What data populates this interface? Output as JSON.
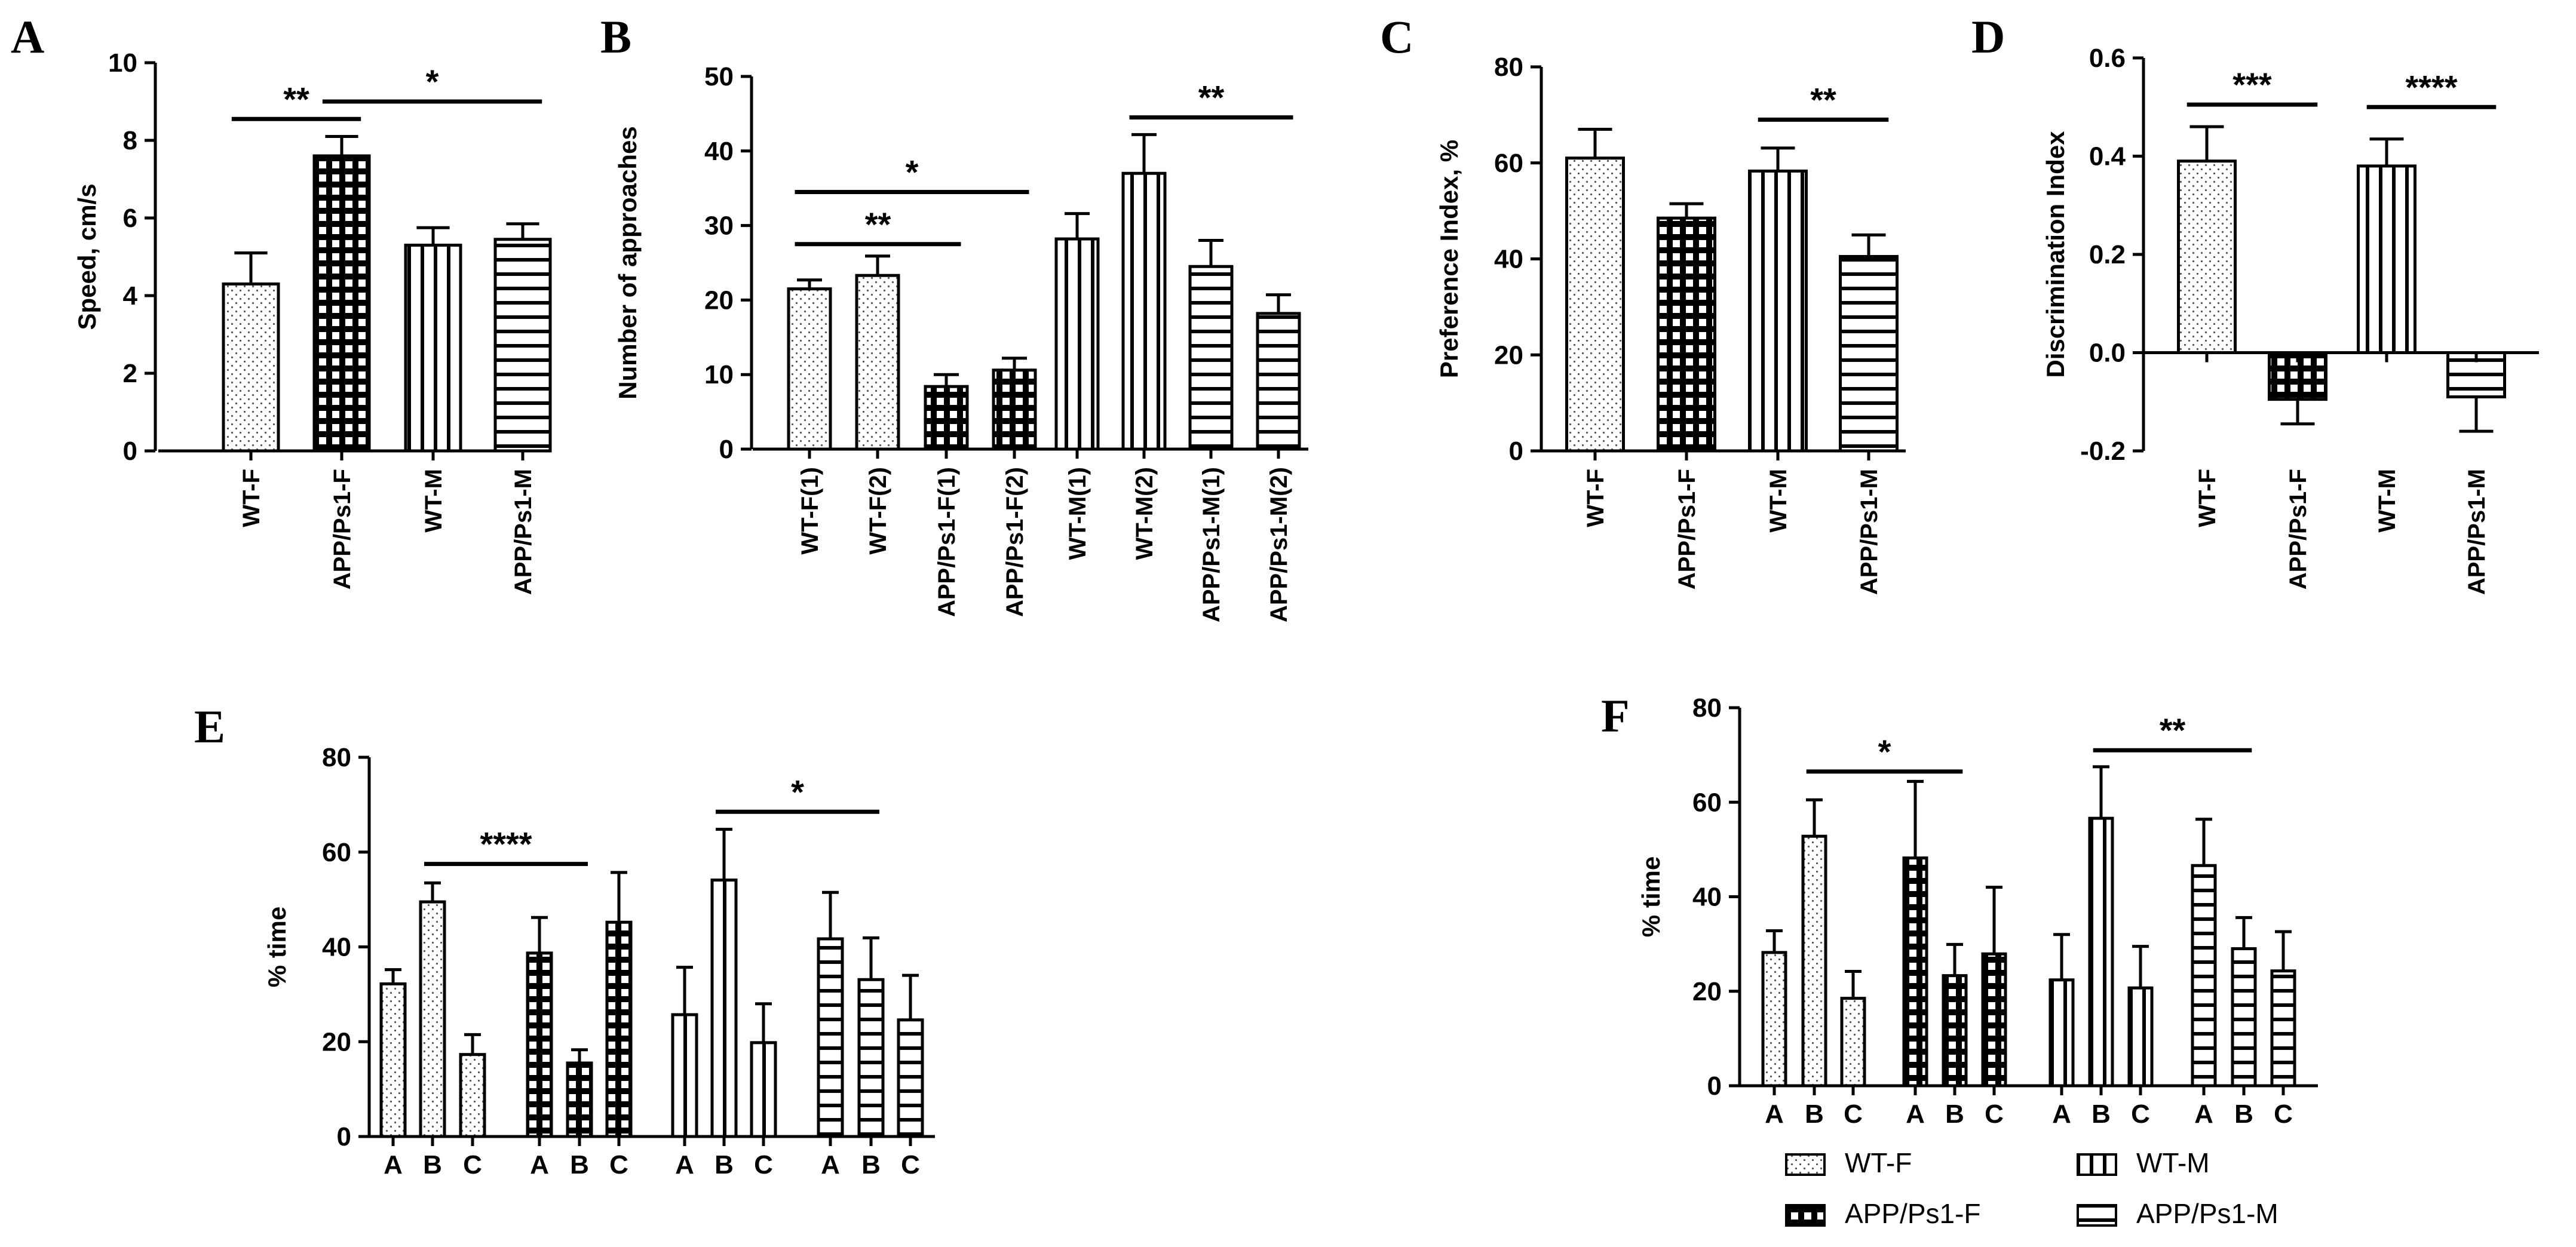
{
  "chart_data": [
    {
      "id": "A",
      "type": "bar",
      "panel_label": "A",
      "ylabel": "Speed, cm/s",
      "ylim": [
        0,
        10
      ],
      "yticks": [
        0,
        2,
        4,
        6,
        8,
        10
      ],
      "categories": [
        "WT-F",
        "APP/Ps1-F",
        "WT-M",
        "APP/Ps1-M"
      ],
      "values": [
        4.3,
        7.6,
        5.3,
        5.45
      ],
      "errors": [
        0.8,
        0.5,
        0.45,
        0.4
      ],
      "patterns": [
        "dots",
        "grid",
        "vert",
        "horiz"
      ],
      "significance": [
        {
          "from": 0,
          "to": 1,
          "label": "**",
          "y": 8.55
        },
        {
          "from": 1,
          "to": 3,
          "label": "*",
          "y": 9.0
        }
      ]
    },
    {
      "id": "B",
      "type": "bar",
      "panel_label": "B",
      "ylabel": "Number of approaches",
      "ylim": [
        0,
        50
      ],
      "yticks": [
        0,
        10,
        20,
        30,
        40,
        50
      ],
      "categories": [
        "WT-F(1)",
        "WT-F(2)",
        "APP/Ps1-F(1)",
        "APP/Ps1-F(2)",
        "WT-M(1)",
        "WT-M(2)",
        "APP/Ps1-M(1)",
        "APP/Ps1-M(2)"
      ],
      "values": [
        21.5,
        23.3,
        8.4,
        10.6,
        28.2,
        37.0,
        24.5,
        18.2
      ],
      "errors": [
        1.2,
        2.6,
        1.6,
        1.6,
        3.4,
        5.2,
        3.5,
        2.5
      ],
      "patterns": [
        "dots",
        "dots",
        "grid",
        "grid",
        "vert",
        "vert",
        "horiz",
        "horiz"
      ],
      "significance": [
        {
          "from": 0,
          "to": 2,
          "label": "**",
          "y": 27.5
        },
        {
          "from": 0,
          "to": 3,
          "label": "*",
          "y": 34.5
        },
        {
          "from": 5,
          "to": 7,
          "label": "**",
          "y": 44.5
        }
      ]
    },
    {
      "id": "C",
      "type": "bar",
      "panel_label": "C",
      "ylabel": "Preference Index, %",
      "ylim": [
        0,
        80
      ],
      "yticks": [
        0,
        20,
        40,
        60,
        80
      ],
      "categories": [
        "WT-F",
        "APP/Ps1-F",
        "WT-M",
        "APP/Ps1-M"
      ],
      "values": [
        61.0,
        48.5,
        58.3,
        40.5
      ],
      "errors": [
        6.0,
        3.0,
        4.8,
        4.5
      ],
      "patterns": [
        "dots",
        "grid",
        "vert",
        "horiz"
      ],
      "significance": [
        {
          "from": 2,
          "to": 3,
          "label": "**",
          "y": 69.0
        }
      ]
    },
    {
      "id": "D",
      "type": "bar",
      "panel_label": "D",
      "ylabel": "Discrimination Index",
      "ylim": [
        -0.2,
        0.6
      ],
      "yticks": [
        -0.2,
        0.0,
        0.2,
        0.4,
        0.6
      ],
      "categories": [
        "WT-F",
        "APP/Ps1-F",
        "WT-M",
        "APP/Ps1-M"
      ],
      "values": [
        0.39,
        -0.095,
        0.38,
        -0.09
      ],
      "errors": [
        0.07,
        0.05,
        0.055,
        0.07
      ],
      "patterns": [
        "dots",
        "grid",
        "vert",
        "horiz"
      ],
      "significance": [
        {
          "from": 0,
          "to": 1,
          "label": "***",
          "y": 0.505
        },
        {
          "from": 2,
          "to": 3,
          "label": "****",
          "y": 0.5
        }
      ]
    },
    {
      "id": "E",
      "type": "bar",
      "panel_label": "E",
      "ylabel": "% time",
      "ylim": [
        0,
        80
      ],
      "yticks": [
        0,
        20,
        40,
        60,
        80
      ],
      "categories": [
        "A",
        "B",
        "C",
        "A",
        "B",
        "C",
        "A",
        "B",
        "C",
        "A",
        "B",
        "C"
      ],
      "values": [
        32.2,
        49.5,
        17.3,
        38.7,
        15.5,
        45.2,
        25.7,
        54.1,
        19.8,
        41.7,
        33.1,
        24.6
      ],
      "errors": [
        3.0,
        4.0,
        4.2,
        7.5,
        2.8,
        10.5,
        10.0,
        10.7,
        8.2,
        9.8,
        8.8,
        9.4
      ],
      "patterns": [
        "dots",
        "dots",
        "dots",
        "grid",
        "grid",
        "grid",
        "vert",
        "vert",
        "vert",
        "horiz",
        "horiz",
        "horiz"
      ],
      "significance": [
        {
          "from": 1,
          "to": 4,
          "label": "****",
          "y": 57.5
        },
        {
          "from": 7,
          "to": 10,
          "label": "*",
          "y": 68.5
        }
      ]
    },
    {
      "id": "F",
      "type": "bar",
      "panel_label": "F",
      "ylabel": "% time",
      "ylim": [
        0,
        80
      ],
      "yticks": [
        0,
        20,
        40,
        60,
        80
      ],
      "categories": [
        "A",
        "B",
        "C",
        "A",
        "B",
        "C",
        "A",
        "B",
        "C",
        "A",
        "B",
        "C"
      ],
      "values": [
        28.2,
        52.8,
        18.5,
        48.2,
        23.3,
        27.9,
        22.4,
        56.6,
        20.7,
        46.6,
        29.0,
        24.3
      ],
      "errors": [
        4.6,
        7.7,
        5.7,
        16.2,
        6.6,
        14.1,
        9.6,
        10.9,
        8.8,
        9.8,
        6.6,
        8.3
      ],
      "patterns": [
        "dots",
        "dots",
        "dots",
        "grid",
        "grid",
        "grid",
        "vert",
        "vert",
        "vert",
        "horiz",
        "horiz",
        "horiz"
      ],
      "significance": [
        {
          "from": 1,
          "to": 4,
          "label": "*",
          "y": 66.5
        },
        {
          "from": 7,
          "to": 10,
          "label": "**",
          "y": 71.0
        }
      ]
    }
  ],
  "legend": [
    {
      "label": "WT-F",
      "pattern": "dots"
    },
    {
      "label": "WT-M",
      "pattern": "vert"
    },
    {
      "label": "APP/Ps1-F",
      "pattern": "grid"
    },
    {
      "label": "APP/Ps1-M",
      "pattern": "horiz"
    }
  ],
  "colors": {
    "ink": "#000000",
    "fill": "#ffffff",
    "dot": "#444444"
  }
}
